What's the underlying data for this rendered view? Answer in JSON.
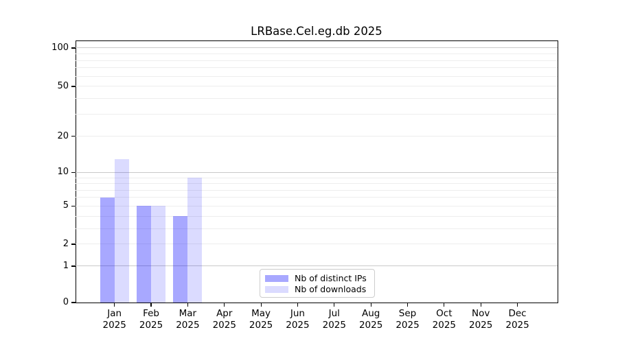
{
  "title": "LRBase.Cel.eg.db 2025",
  "chart_data": {
    "type": "bar",
    "title": "LRBase.Cel.eg.db 2025",
    "categories": [
      "Jan",
      "Feb",
      "Mar",
      "Apr",
      "May",
      "Jun",
      "Jul",
      "Aug",
      "Sep",
      "Oct",
      "Nov",
      "Dec"
    ],
    "year_label": "2025",
    "series": [
      {
        "name": "Nb of distinct IPs",
        "color": "rgba(0,0,255,0.34)",
        "values": [
          6,
          5,
          4,
          0,
          0,
          0,
          0,
          0,
          0,
          0,
          0,
          0
        ]
      },
      {
        "name": "Nb of downloads",
        "color": "rgba(0,0,255,0.14)",
        "values": [
          13,
          5,
          9,
          0,
          0,
          0,
          0,
          0,
          0,
          0,
          0,
          0
        ]
      }
    ],
    "xlabel": "",
    "ylabel": "",
    "yscale": "pseudo-log (log10(1+v/1.1))",
    "ylim": [
      0,
      115
    ],
    "yticks": [
      0,
      1,
      2,
      5,
      10,
      20,
      50,
      100
    ],
    "major_grid_values": [
      1,
      10,
      100
    ],
    "minor_grid_values": [
      2,
      3,
      4,
      5,
      6,
      7,
      8,
      9,
      20,
      30,
      40,
      50,
      60,
      70,
      80,
      90
    ],
    "grid": true,
    "legend_position": "lower center inside plot"
  },
  "legend": {
    "items": [
      {
        "label": "Nb of distinct IPs"
      },
      {
        "label": "Nb of downloads"
      }
    ]
  },
  "colors": {
    "bar_distinct_ips": "rgba(0,0,255,0.34)",
    "bar_downloads": "rgba(0,0,255,0.14)",
    "major_gridline": "#c9c9c9",
    "minor_gridline": "#ededed",
    "spine": "#000000",
    "background": "#ffffff"
  }
}
